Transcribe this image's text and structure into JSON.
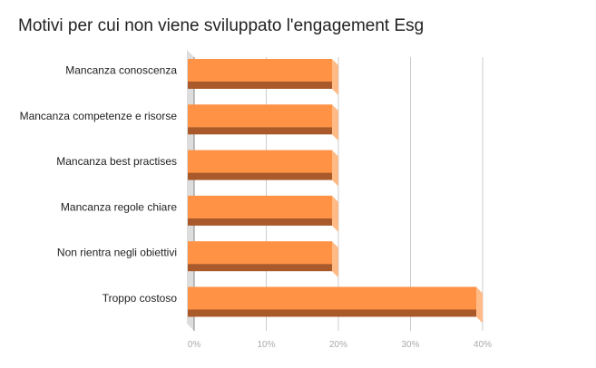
{
  "chart_data": {
    "type": "bar",
    "orientation": "horizontal",
    "style": "3d",
    "title": "Motivi per cui non viene sviluppato l'engagement Esg",
    "categories": [
      "Mancanza conoscenza",
      "Mancanza competenze e risorse",
      "Mancanza best practises",
      "Mancanza regole chiare",
      "Non rientra negli obiettivi",
      "Troppo costoso"
    ],
    "values": [
      20,
      20,
      20,
      20,
      20,
      40
    ],
    "unit": "%",
    "xlim": [
      0,
      40
    ],
    "xticks": [
      0,
      10,
      20,
      30,
      40
    ],
    "xtick_labels": [
      "0%",
      "10%",
      "20%",
      "30%",
      "40%"
    ],
    "grid": true,
    "legend": "none",
    "colors": {
      "bar_front": "#ff9245",
      "bar_bottom": "#a9592a",
      "bar_side": "#ffba86",
      "floor": "#dddddd",
      "gridline": "#cccccc"
    }
  }
}
